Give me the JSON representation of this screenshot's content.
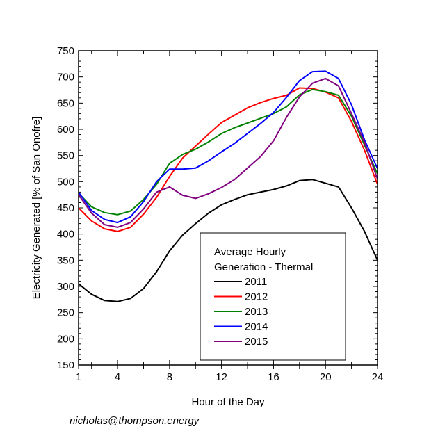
{
  "chart_data": {
    "type": "line",
    "xlabel": "Hour of the Day",
    "ylabel": "Electricity Generated [% of San Onofre]",
    "xlim": [
      1,
      24
    ],
    "ylim": [
      150,
      750
    ],
    "xticks": [
      1,
      4,
      8,
      12,
      16,
      20,
      24
    ],
    "yticks": [
      150,
      200,
      250,
      300,
      350,
      400,
      450,
      500,
      550,
      600,
      650,
      700,
      750
    ],
    "grid": false,
    "legend": {
      "title": "Average Hourly\nGeneration - Thermal",
      "title_lines": [
        "Average Hourly",
        "Generation - Thermal"
      ],
      "placement": "bottom-center"
    },
    "x": [
      1,
      2,
      3,
      4,
      5,
      6,
      7,
      8,
      9,
      10,
      11,
      12,
      13,
      14,
      15,
      16,
      17,
      18,
      19,
      20,
      21,
      22,
      23,
      24
    ],
    "series": [
      {
        "name": "2011",
        "color": "#000000",
        "values": [
          305,
          285,
          273,
          271,
          277,
          296,
          328,
          368,
          398,
          420,
          440,
          456,
          466,
          475,
          480,
          485,
          492,
          502,
          504,
          497,
          490,
          450,
          405,
          350
        ]
      },
      {
        "name": "2012",
        "color": "#ff0000",
        "values": [
          450,
          425,
          410,
          405,
          413,
          438,
          470,
          510,
          545,
          568,
          591,
          613,
          627,
          641,
          651,
          659,
          665,
          679,
          678,
          671,
          660,
          615,
          560,
          495
        ]
      },
      {
        "name": "2013",
        "color": "#008000",
        "values": [
          478,
          452,
          441,
          437,
          444,
          466,
          495,
          535,
          552,
          562,
          576,
          592,
          603,
          612,
          621,
          630,
          643,
          666,
          676,
          672,
          665,
          625,
          570,
          515
        ]
      },
      {
        "name": "2014",
        "color": "#0000ff",
        "values": [
          480,
          445,
          428,
          422,
          433,
          462,
          500,
          524,
          524,
          526,
          540,
          557,
          573,
          592,
          611,
          632,
          661,
          693,
          710,
          711,
          697,
          647,
          580,
          525
        ]
      },
      {
        "name": "2015",
        "color": "#800080",
        "values": [
          475,
          440,
          418,
          413,
          422,
          448,
          480,
          490,
          474,
          468,
          477,
          489,
          504,
          526,
          548,
          578,
          623,
          662,
          688,
          697,
          683,
          630,
          575,
          505
        ]
      }
    ]
  },
  "footer": "nicholas@thompson.energy"
}
